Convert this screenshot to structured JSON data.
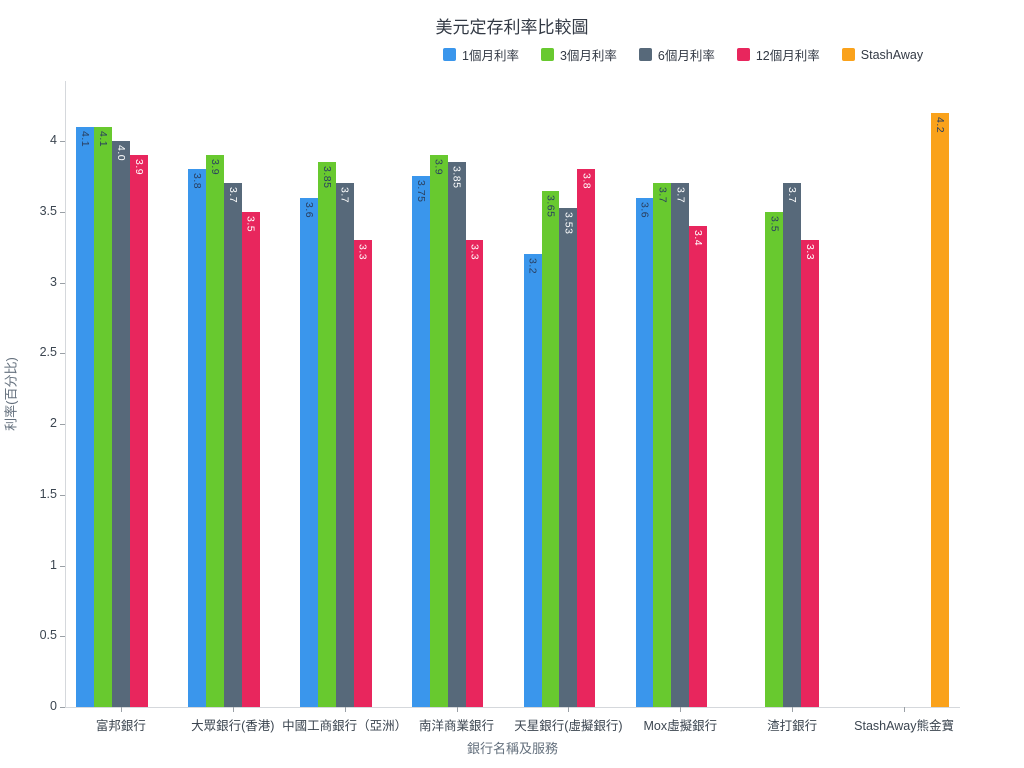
{
  "title": "美元定存利率比較圖",
  "x_axis_title": "銀行名稱及服務",
  "y_axis_title": "利率(百分比)",
  "y_tick_labels": [
    "0",
    "0.5",
    "1",
    "1.5",
    "2",
    "2.5",
    "3",
    "3.5",
    "4"
  ],
  "legend": [
    "1個月利率",
    "3個月利率",
    "6個月利率",
    "12個月利率",
    "StashAway"
  ],
  "chart_data": {
    "type": "bar",
    "title": "美元定存利率比較圖",
    "xlabel": "銀行名稱及服務",
    "ylabel": "利率(百分比)",
    "ylim": [
      0,
      4.42
    ],
    "y_tick_step": 0.5,
    "grid": false,
    "legend_position": "top-center",
    "categories": [
      "富邦銀行",
      "大眾銀行(香港)",
      "中國工商銀行（亞洲）",
      "南洋商業銀行",
      "天星銀行(虛擬銀行)",
      "Mox虛擬銀行",
      "渣打銀行",
      "StashAway熊金寶"
    ],
    "series": [
      {
        "name": "1個月利率",
        "color": "#3a96ec",
        "label_color": "#2a3f5f",
        "values": [
          4.1,
          3.8,
          3.6,
          3.75,
          3.2,
          3.6,
          null,
          null
        ],
        "labels": [
          "4.1",
          "3.8",
          "3.6",
          "3.75",
          "3.2",
          "3.6",
          null,
          null
        ]
      },
      {
        "name": "3個月利率",
        "color": "#68c92f",
        "label_color": "#2a3f5f",
        "values": [
          4.1,
          3.9,
          3.85,
          3.9,
          3.65,
          3.7,
          3.5,
          null
        ],
        "labels": [
          "4.1",
          "3.9",
          "3.85",
          "3.9",
          "3.65",
          "3.7",
          "3.5",
          null
        ]
      },
      {
        "name": "6個月利率",
        "color": "#57697a",
        "label_color": "#ffffff",
        "values": [
          4.0,
          3.7,
          3.7,
          3.85,
          3.53,
          3.7,
          3.7,
          null
        ],
        "labels": [
          "4.0",
          "3.7",
          "3.7",
          "3.85",
          "3.53",
          "3.7",
          "3.7",
          null
        ]
      },
      {
        "name": "12個月利率",
        "color": "#e8265d",
        "label_color": "#ffffff",
        "values": [
          3.9,
          3.5,
          3.3,
          3.3,
          3.8,
          3.4,
          3.3,
          null
        ],
        "labels": [
          "3.9",
          "3.5",
          "3.3",
          "3.3",
          "3.8",
          "3.4",
          "3.3",
          null
        ]
      },
      {
        "name": "StashAway",
        "color": "#faa21b",
        "label_color": "#2a3f5f",
        "values": [
          null,
          null,
          null,
          null,
          null,
          null,
          null,
          4.2
        ],
        "labels": [
          null,
          null,
          null,
          null,
          null,
          null,
          null,
          "4.2"
        ]
      }
    ]
  }
}
